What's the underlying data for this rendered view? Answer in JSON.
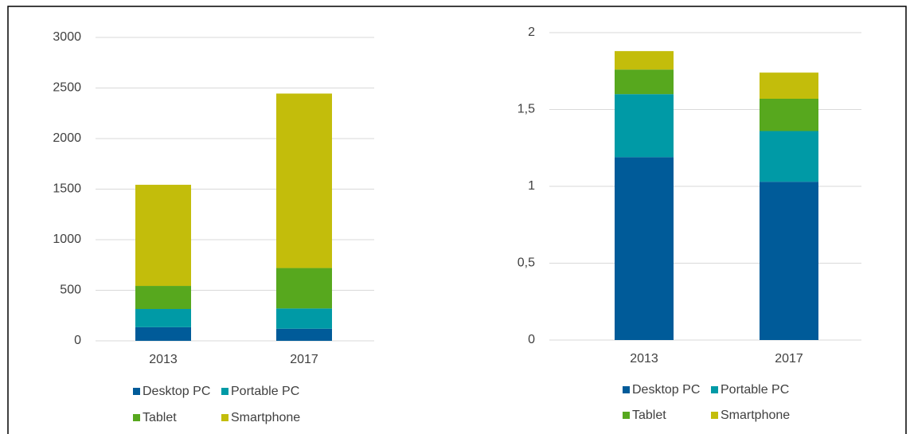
{
  "chart_data": [
    {
      "type": "stacked_bar",
      "categories": [
        "2013",
        "2017"
      ],
      "series": [
        {
          "name": "Desktop PC",
          "color": "#005b99",
          "values": [
            135,
            120
          ]
        },
        {
          "name": "Portable PC",
          "color": "#009aa6",
          "values": [
            180,
            200
          ]
        },
        {
          "name": "Tablet",
          "color": "#57a81e",
          "values": [
            228,
            400
          ]
        },
        {
          "name": "Smartphone",
          "color": "#c3bd0b",
          "values": [
            1000,
            1725
          ]
        }
      ],
      "ylim": [
        0,
        3000
      ],
      "yticks": [
        0,
        500,
        1000,
        1500,
        2000,
        2500,
        3000
      ],
      "grid": true,
      "legend": "bottom"
    },
    {
      "type": "stacked_bar",
      "categories": [
        "2013",
        "2017"
      ],
      "series": [
        {
          "name": "Desktop PC",
          "color": "#005b99",
          "values": [
            1.19,
            1.03
          ]
        },
        {
          "name": "Portable PC",
          "color": "#009aa6",
          "values": [
            0.41,
            0.33
          ]
        },
        {
          "name": "Tablet",
          "color": "#57a81e",
          "values": [
            0.16,
            0.21
          ]
        },
        {
          "name": "Smartphone",
          "color": "#c3bd0b",
          "values": [
            0.12,
            0.17
          ]
        }
      ],
      "ylim": [
        0,
        2
      ],
      "yticks": [
        0,
        {
          "value": 0.5,
          "label": "0,5"
        },
        1,
        {
          "value": 1.5,
          "label": "1,5"
        },
        2
      ],
      "grid": true,
      "legend": "bottom"
    }
  ]
}
